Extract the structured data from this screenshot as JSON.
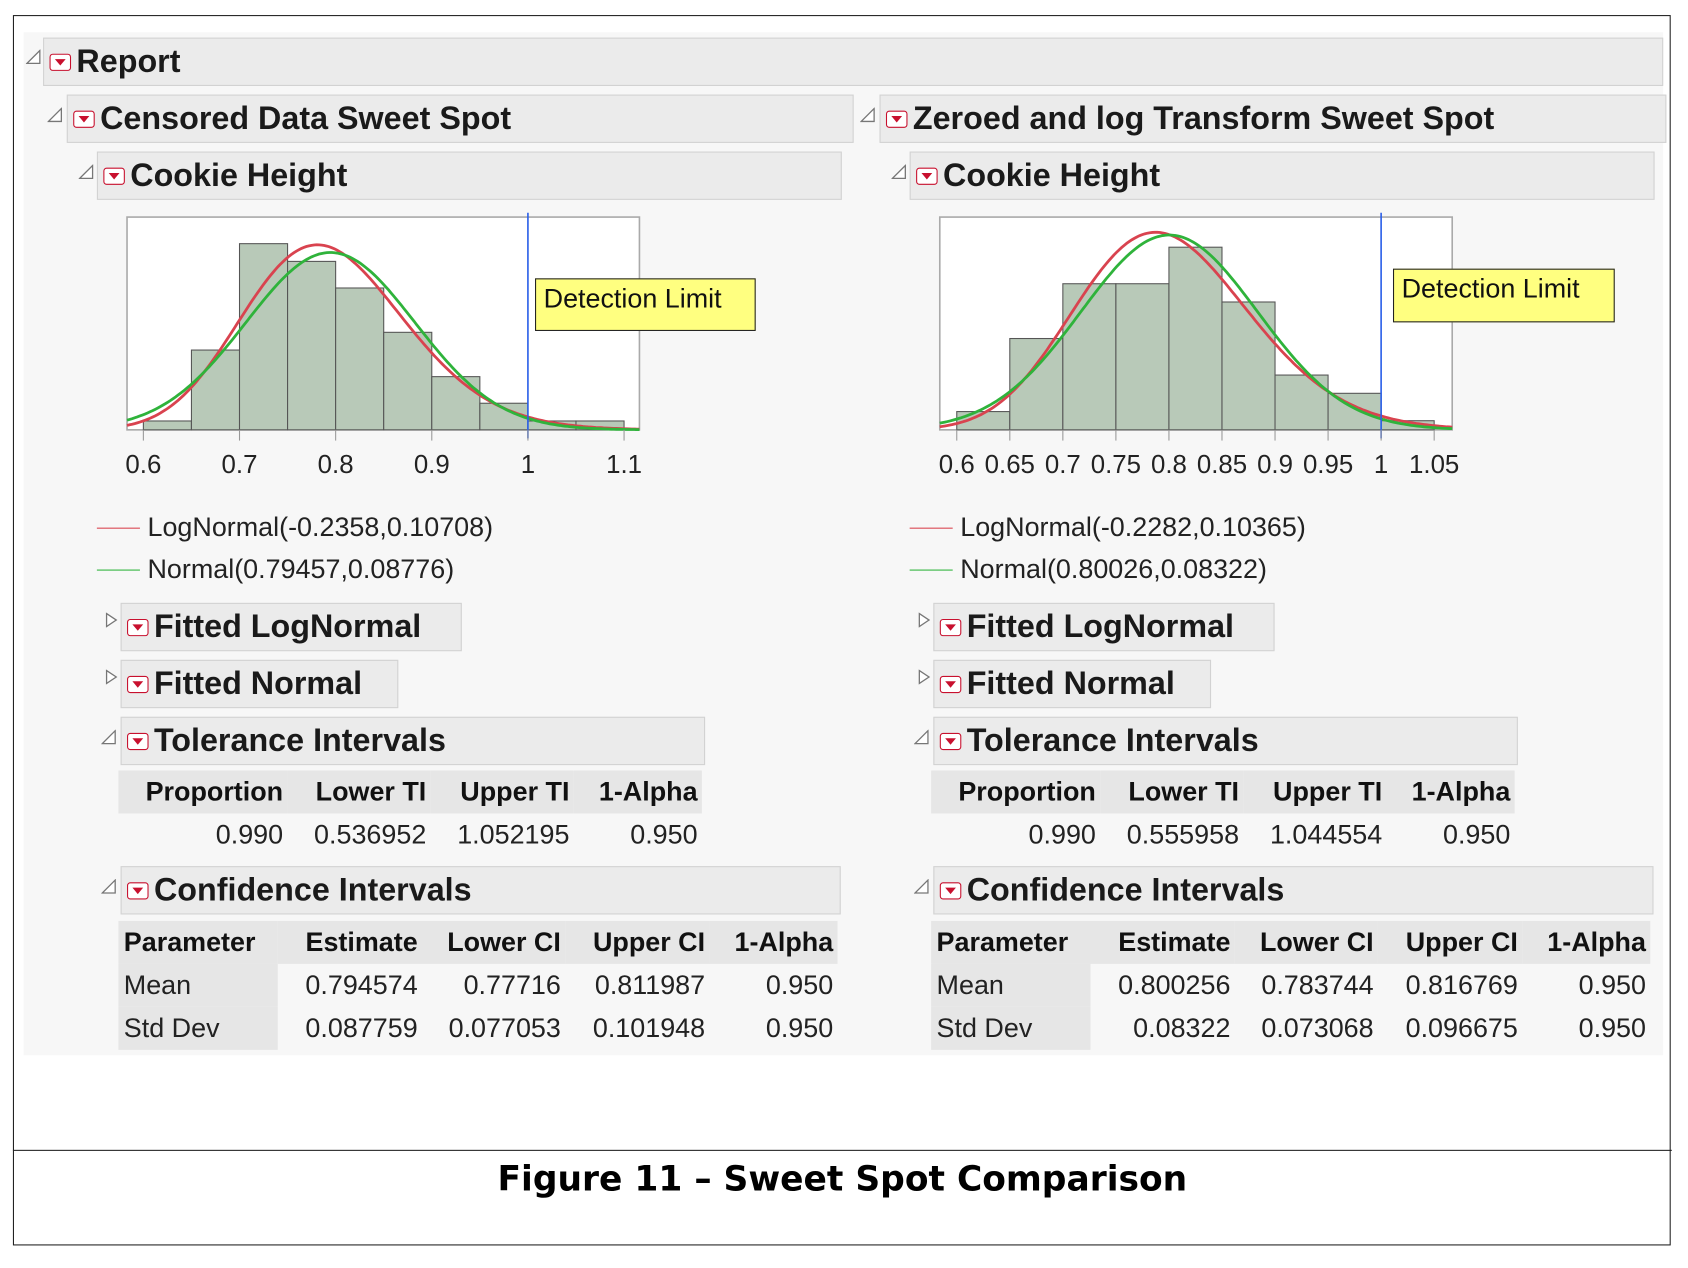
{
  "report_title": "Report",
  "caption": "Figure 11 – Sweet Spot Comparison",
  "colors": {
    "lognormal": "#d9434f",
    "normal": "#2fb33b",
    "bars": "#b8c9b8",
    "detection_line": "#2a5fe8",
    "annotation_bg": "#ffff80",
    "disclosure": "#c8102e"
  },
  "panels": [
    {
      "title": "Censored Data Sweet Spot",
      "subtitle": "Cookie Height",
      "annotation": "Detection Limit",
      "legend": [
        {
          "label": "LogNormal(-0.2358,0.10708)",
          "color": "#d9434f"
        },
        {
          "label": "Normal(0.79457,0.08776)",
          "color": "#2fb33b"
        }
      ],
      "fitted_lognormal": "Fitted LogNormal",
      "fitted_normal": "Fitted Normal",
      "tolerance": {
        "title": "Tolerance Intervals",
        "headers": [
          "Proportion",
          "Lower TI",
          "Upper TI",
          "1-Alpha"
        ],
        "rows": [
          [
            "0.990",
            "0.536952",
            "1.052195",
            "0.950"
          ]
        ]
      },
      "confidence": {
        "title": "Confidence Intervals",
        "headers": [
          "Parameter",
          "Estimate",
          "Lower CI",
          "Upper CI",
          "1-Alpha"
        ],
        "rows": [
          [
            "Mean",
            "0.794574",
            "0.77716",
            "0.811987",
            "0.950"
          ],
          [
            "Std Dev",
            "0.087759",
            "0.077053",
            "0.101948",
            "0.950"
          ]
        ]
      }
    },
    {
      "title": "Zeroed and log Transform Sweet Spot",
      "subtitle": "Cookie Height",
      "annotation": "Detection Limit",
      "legend": [
        {
          "label": "LogNormal(-0.2282,0.10365)",
          "color": "#d9434f"
        },
        {
          "label": "Normal(0.80026,0.08322)",
          "color": "#2fb33b"
        }
      ],
      "fitted_lognormal": "Fitted LogNormal",
      "fitted_normal": "Fitted Normal",
      "tolerance": {
        "title": "Tolerance Intervals",
        "headers": [
          "Proportion",
          "Lower TI",
          "Upper TI",
          "1-Alpha"
        ],
        "rows": [
          [
            "0.990",
            "0.555958",
            "1.044554",
            "0.950"
          ]
        ]
      },
      "confidence": {
        "title": "Confidence Intervals",
        "headers": [
          "Parameter",
          "Estimate",
          "Lower CI",
          "Upper CI",
          "1-Alpha"
        ],
        "rows": [
          [
            "Mean",
            "0.800256",
            "0.783744",
            "0.816769",
            "0.950"
          ],
          [
            "Std Dev",
            "0.08322",
            "0.073068",
            "0.096675",
            "0.950"
          ]
        ]
      }
    }
  ],
  "chart_data": [
    {
      "type": "bar",
      "subtype": "histogram",
      "title": "",
      "xlabel": "",
      "ylabel": "",
      "bin_edges": [
        0.6,
        0.65,
        0.7,
        0.75,
        0.8,
        0.85,
        0.9,
        0.95,
        1.0,
        1.05,
        1.1
      ],
      "values": [
        1,
        9,
        21,
        19,
        16,
        11,
        6,
        3,
        1,
        1
      ],
      "xlim": [
        0.583,
        1.116
      ],
      "ylim": [
        0,
        24
      ],
      "xticks": [
        0.6,
        0.7,
        0.8,
        0.9,
        1,
        1.1
      ],
      "xtick_labels": [
        "0.6",
        "0.7",
        "0.8",
        "0.9",
        "1",
        "1.1"
      ],
      "reference_line": {
        "x": 1.0,
        "label": "Detection Limit"
      },
      "curves": [
        {
          "name": "LogNormal(-0.2358,0.10708)",
          "dist": "lognormal",
          "mu": -0.2358,
          "sigma": 0.10708,
          "color": "#d9434f"
        },
        {
          "name": "Normal(0.79457,0.08776)",
          "dist": "normal",
          "mu": 0.79457,
          "sigma": 0.08776,
          "color": "#2fb33b"
        }
      ],
      "grid": false,
      "legend": "bottom"
    },
    {
      "type": "bar",
      "subtype": "histogram",
      "title": "",
      "xlabel": "",
      "ylabel": "",
      "bin_edges": [
        0.6,
        0.65,
        0.7,
        0.75,
        0.8,
        0.85,
        0.9,
        0.95,
        1.0,
        1.05
      ],
      "values": [
        2,
        10,
        16,
        16,
        20,
        14,
        6,
        4,
        1
      ],
      "xlim": [
        0.584,
        1.067
      ],
      "ylim": [
        0,
        23.3
      ],
      "xticks": [
        0.6,
        0.65,
        0.7,
        0.75,
        0.8,
        0.85,
        0.9,
        0.95,
        1,
        1.05
      ],
      "xtick_labels": [
        "0.6",
        "0.65",
        "0.7",
        "0.75",
        "0.8",
        "0.85",
        "0.9",
        "0.95",
        "1",
        "1.05"
      ],
      "reference_line": {
        "x": 1.0,
        "label": "Detection Limit"
      },
      "curves": [
        {
          "name": "LogNormal(-0.2282,0.10365)",
          "dist": "lognormal",
          "mu": -0.2282,
          "sigma": 0.10365,
          "color": "#d9434f"
        },
        {
          "name": "Normal(0.80026,0.08322)",
          "dist": "normal",
          "mu": 0.80026,
          "sigma": 0.08322,
          "color": "#2fb33b"
        }
      ],
      "grid": false,
      "legend": "bottom"
    }
  ]
}
